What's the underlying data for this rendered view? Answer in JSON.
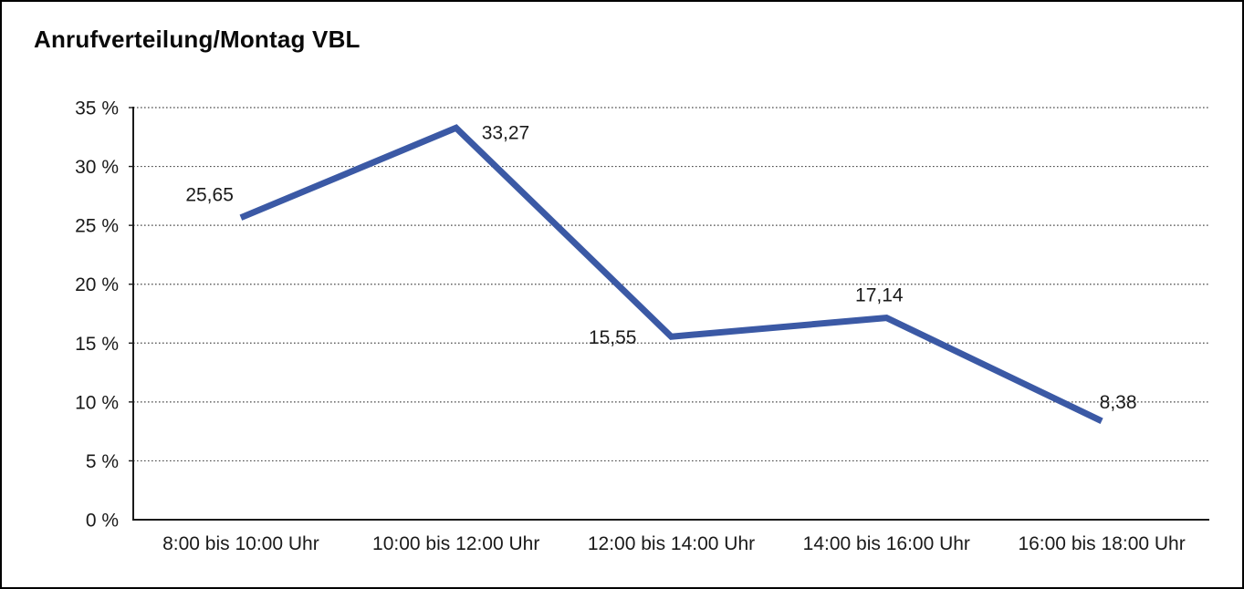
{
  "page": {
    "background": "#ffffff",
    "border_color": "#000000"
  },
  "title": "Anrufverteilung/Montag VBL",
  "chart_data": {
    "type": "line",
    "title": "Anrufverteilung/Montag VBL",
    "categories": [
      "8:00 bis 10:00 Uhr",
      "10:00 bis 12:00 Uhr",
      "12:00 bis 14:00 Uhr",
      "14:00 bis 16:00 Uhr",
      "16:00 bis 18:00 Uhr"
    ],
    "values": [
      25.65,
      33.27,
      15.55,
      17.14,
      8.38
    ],
    "value_labels": [
      "25,65",
      "33,27",
      "15,55",
      "17,14",
      "8,38"
    ],
    "unit": "%",
    "xlabel": "",
    "ylabel": "",
    "ylim": [
      0,
      35
    ],
    "ytick_step": 5,
    "ytick_labels": [
      "0 %",
      "5 %",
      "10 %",
      "15 %",
      "20 %",
      "25 %",
      "30 %",
      "35 %"
    ],
    "grid": "horizontal-dotted",
    "legend": "none",
    "series_name": "Anrufverteilung Montag VBL",
    "line_color": "#3B59A5",
    "axis_color": "#1a1a1a",
    "label_color": "#1a1a1a",
    "gridline_color": "#4a4a4a"
  }
}
